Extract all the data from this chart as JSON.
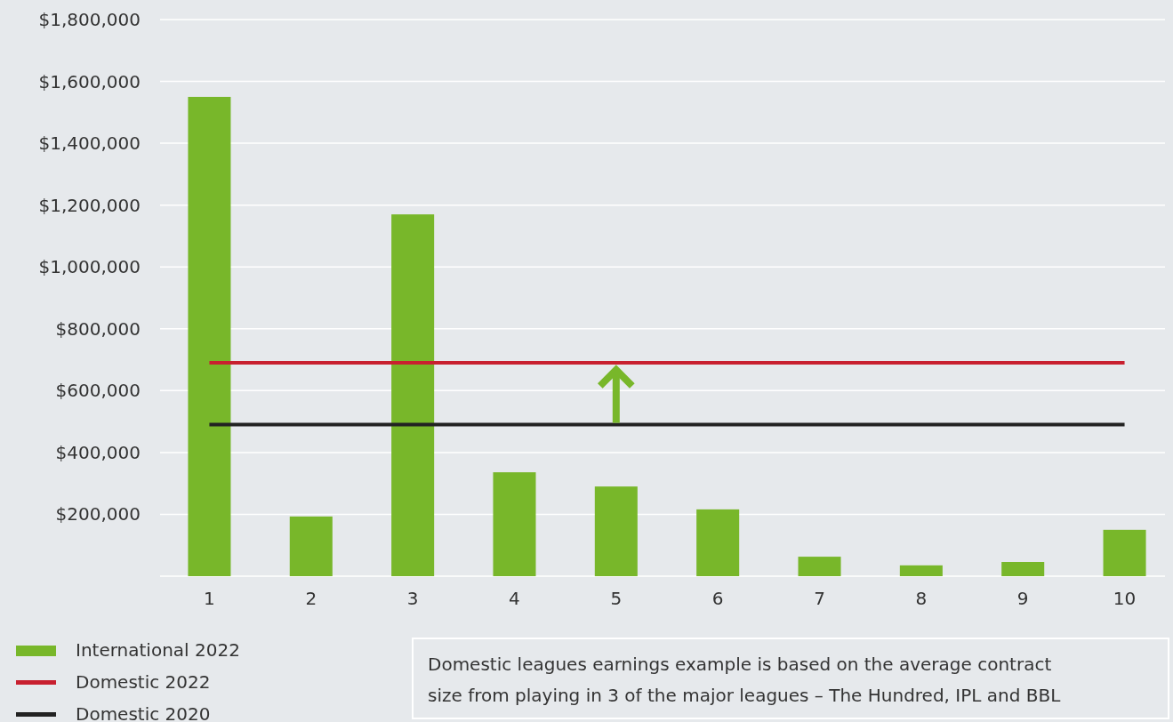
{
  "chart_data": {
    "type": "bar",
    "categories": [
      "1",
      "2",
      "3",
      "4",
      "5",
      "6",
      "7",
      "8",
      "9",
      "10"
    ],
    "series": [
      {
        "name": "International 2022",
        "color": "#78b72a",
        "values": [
          1550000,
          193000,
          1170000,
          336000,
          290000,
          216000,
          63000,
          35000,
          46000,
          150000
        ]
      },
      {
        "name": "Domestic 2022",
        "type": "line",
        "color": "#c8202f",
        "values": [
          690000,
          690000,
          690000,
          690000,
          690000,
          690000,
          690000,
          690000,
          690000,
          690000
        ]
      },
      {
        "name": "Domestic 2020",
        "type": "line",
        "color": "#222222",
        "values": [
          490000,
          490000,
          490000,
          490000,
          490000,
          490000,
          490000,
          490000,
          490000,
          490000
        ]
      }
    ],
    "ylim": [
      0,
      1800000
    ],
    "yticks": [
      {
        "value": 0,
        "label": null
      },
      {
        "value": 200000,
        "label": "$200,000"
      },
      {
        "value": 400000,
        "label": "$400,000"
      },
      {
        "value": 600000,
        "label": "$600,000"
      },
      {
        "value": 800000,
        "label": "$800,000"
      },
      {
        "value": 1000000,
        "label": "$1,000,000"
      },
      {
        "value": 1200000,
        "label": "$1,200,000"
      },
      {
        "value": 1400000,
        "label": "$1,400,000"
      },
      {
        "value": 1600000,
        "label": "$1,600,000"
      },
      {
        "value": 1800000,
        "label": "$1,800,000"
      }
    ],
    "grid": "y",
    "legend": "bottom left",
    "marker": "none",
    "line_style": "solid",
    "annotations": [
      "Domestic leagues earnings example is based on the average contract size from playing in 3 of the major leagues – The Hundred, IPL and BBL"
    ]
  }
}
